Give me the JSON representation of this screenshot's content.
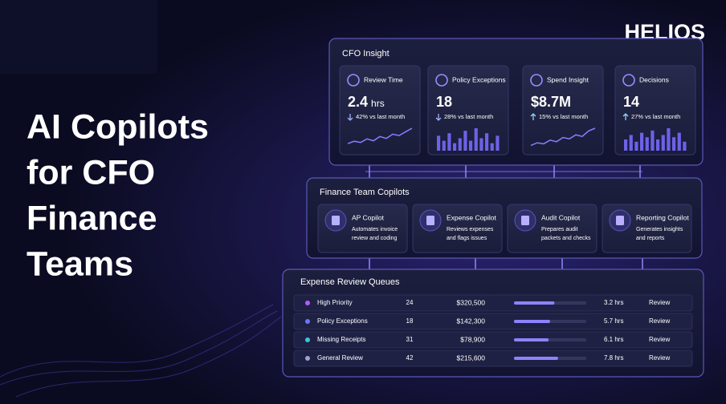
{
  "brand": "HELIOS",
  "headline": [
    "AI Copilots",
    "for CFO",
    "Finance",
    "Teams"
  ],
  "insight": {
    "title": "CFO Insight",
    "cards": [
      {
        "label": "Review Time",
        "value": "2.4",
        "unit": "hrs",
        "trend": "down",
        "delta": "42% vs last month",
        "chart": {
          "kind": "line",
          "values": [
            3,
            4,
            3.5,
            5,
            4.2,
            6,
            5.2,
            7,
            6.4,
            8,
            9.5
          ]
        }
      },
      {
        "label": "Policy Exceptions",
        "value": "18",
        "trend": "down",
        "delta": "28% vs last month",
        "chart": {
          "kind": "bar",
          "values": [
            6,
            4,
            7,
            3,
            5,
            8,
            4,
            9,
            5,
            7,
            3,
            6
          ]
        }
      },
      {
        "label": "Spend Insight",
        "value": "$8.7M",
        "trend": "up",
        "delta": "15% vs last month",
        "chart": {
          "kind": "line",
          "values": [
            2,
            3,
            2.6,
            4,
            3.4,
            5,
            4.5,
            6,
            5.4,
            7.5,
            8.5
          ]
        }
      },
      {
        "label": "Decisions",
        "value": "14",
        "trend": "up",
        "delta": "27% vs last month",
        "chart": {
          "kind": "bar",
          "values": [
            5,
            7,
            4,
            8,
            6,
            9,
            5,
            7,
            10,
            6,
            8,
            4
          ]
        }
      }
    ]
  },
  "copilots": {
    "title": "Finance Team Copilots",
    "cards": [
      {
        "name": "AP Copilot",
        "description": [
          "Automates invoice",
          "review and coding"
        ]
      },
      {
        "name": "Expense Copilot",
        "description": [
          "Reviews expenses",
          "and flags issues"
        ]
      },
      {
        "name": "Audit Copilot",
        "description": [
          "Prepares audit",
          "packets and checks"
        ]
      },
      {
        "name": "Reporting Copilot",
        "description": [
          "Generates insights",
          "and reports"
        ]
      }
    ]
  },
  "queues": {
    "title": "Expense Review Queues",
    "rows": [
      {
        "color": "#b15cff",
        "name": "High Priority",
        "count": 24,
        "amount": "$320,500",
        "progress": 0.56,
        "time": "3.2 hrs",
        "action": "Review"
      },
      {
        "color": "#6f74ff",
        "name": "Policy Exceptions",
        "count": 18,
        "amount": "$142,300",
        "progress": 0.5,
        "time": "5.7 hrs",
        "action": "Review"
      },
      {
        "color": "#3cc6d8",
        "name": "Missing Receipts",
        "count": 31,
        "amount": "$78,900",
        "progress": 0.48,
        "time": "6.1 hrs",
        "action": "Review"
      },
      {
        "color": "#9fa3c8",
        "name": "General Review",
        "count": 42,
        "amount": "$215,600",
        "progress": 0.61,
        "time": "7.8 hrs",
        "action": "Review"
      }
    ]
  }
}
